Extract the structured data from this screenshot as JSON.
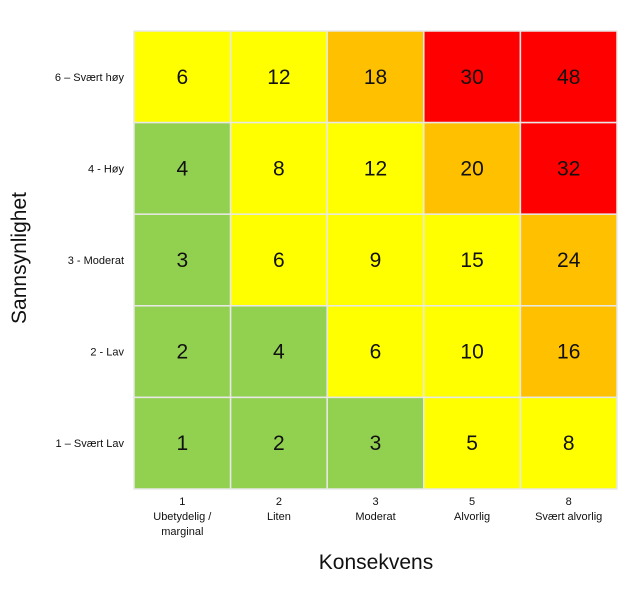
{
  "chart_data": {
    "type": "heatmap",
    "xlabel": "Konsekvens",
    "ylabel": "Sannsynlighet",
    "x_categories": [
      [
        "1",
        "Ubetydelig /",
        "marginal"
      ],
      [
        "2",
        "Liten"
      ],
      [
        "3",
        "Moderat"
      ],
      [
        "5",
        "Alvorlig"
      ],
      [
        "8",
        "Svært alvorlig"
      ]
    ],
    "y_categories": [
      "6 – Svært høy",
      "4 - Høy",
      "3 - Moderat",
      "2 - Lav",
      "1 – Svært Lav"
    ],
    "values": [
      [
        6,
        12,
        18,
        30,
        48
      ],
      [
        4,
        8,
        12,
        20,
        32
      ],
      [
        3,
        6,
        9,
        15,
        24
      ],
      [
        2,
        4,
        6,
        10,
        16
      ],
      [
        1,
        2,
        3,
        5,
        8
      ]
    ],
    "color_levels": [
      [
        2,
        2,
        3,
        4,
        4
      ],
      [
        1,
        2,
        2,
        3,
        4
      ],
      [
        1,
        2,
        2,
        2,
        3
      ],
      [
        1,
        1,
        2,
        2,
        3
      ],
      [
        1,
        1,
        1,
        2,
        2
      ]
    ],
    "palette": {
      "1": "#92d050",
      "2": "#ffff00",
      "3": "#ffc000",
      "4": "#ff0000"
    },
    "grid_line_color": "#e8e8e8"
  }
}
